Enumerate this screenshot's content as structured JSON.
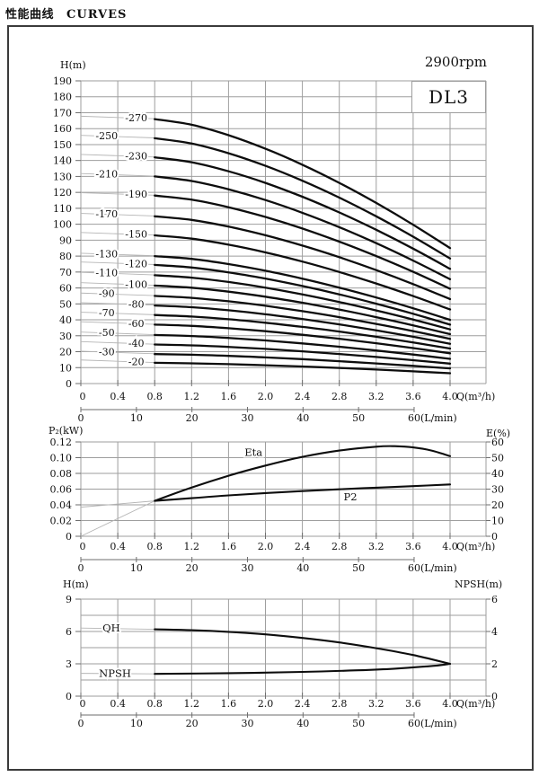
{
  "header": {
    "title_zh": "性能曲线",
    "title_en": "CURVES",
    "speed": "2900rpm",
    "model": "DL3"
  },
  "colors": {
    "grid": "#9e9e9e",
    "curve": "#0d0d0d",
    "leader": "#b5b5b5",
    "tick": "#6e6e6e",
    "frame": "#3b3b3b"
  },
  "chart_data": [
    {
      "id": "head-capacity-curves",
      "type": "line",
      "title": "Q-H curves per stage count",
      "y_axis": {
        "label": "H(m)",
        "min": 0,
        "max": 190,
        "tick_labels": [
          "190",
          "180",
          "170",
          "160",
          "150",
          "140",
          "130",
          "120",
          "110",
          "100",
          "90",
          "80",
          "70",
          "60",
          "50",
          "40",
          "30",
          "20",
          "10",
          "0"
        ]
      },
      "x_axis": {
        "label": "Q(m³/h)",
        "min": 0,
        "max": 4.0,
        "tick_labels": [
          "0",
          "0.4",
          "0.8",
          "1.2",
          "1.6",
          "2.0",
          "2.4",
          "2.8",
          "3.2",
          "3.6",
          "4.0"
        ]
      },
      "x_axis2": {
        "label": "(L/min)",
        "min": 0,
        "max": 60,
        "tick_labels": [
          "0",
          "10",
          "20",
          "30",
          "40",
          "50",
          "60"
        ]
      },
      "q_range": [
        0.8,
        4.0
      ],
      "curves": [
        {
          "label": "-270",
          "h_start": 166,
          "h_end": 85,
          "label_side": "right"
        },
        {
          "label": "-250",
          "h_start": 154,
          "h_end": 78.5,
          "label_side": "left"
        },
        {
          "label": "-230",
          "h_start": 142,
          "h_end": 72,
          "label_side": "right"
        },
        {
          "label": "-210",
          "h_start": 130,
          "h_end": 65.5,
          "label_side": "left"
        },
        {
          "label": "-190",
          "h_start": 118,
          "h_end": 59.5,
          "label_side": "right"
        },
        {
          "label": "-170",
          "h_start": 105,
          "h_end": 53,
          "label_side": "left"
        },
        {
          "label": "-150",
          "h_start": 93,
          "h_end": 46.5,
          "label_side": "right"
        },
        {
          "label": "-130",
          "h_start": 80,
          "h_end": 40,
          "label_side": "left"
        },
        {
          "label": "-120",
          "h_start": 74.5,
          "h_end": 37,
          "label_side": "right"
        },
        {
          "label": "-110",
          "h_start": 68,
          "h_end": 34,
          "label_side": "left"
        },
        {
          "label": "-100",
          "h_start": 61.5,
          "h_end": 31,
          "label_side": "right"
        },
        {
          "label": "-90",
          "h_start": 55,
          "h_end": 28,
          "label_side": "left"
        },
        {
          "label": "-80",
          "h_start": 49,
          "h_end": 25,
          "label_side": "right"
        },
        {
          "label": "-70",
          "h_start": 43,
          "h_end": 22,
          "label_side": "left"
        },
        {
          "label": "-60",
          "h_start": 37,
          "h_end": 19,
          "label_side": "right"
        },
        {
          "label": "-50",
          "h_start": 30.5,
          "h_end": 15.5,
          "label_side": "left"
        },
        {
          "label": "-40",
          "h_start": 24.5,
          "h_end": 12.5,
          "label_side": "right"
        },
        {
          "label": "-30",
          "h_start": 18.5,
          "h_end": 9.5,
          "label_side": "left"
        },
        {
          "label": "-20",
          "h_start": 13,
          "h_end": 6.5,
          "label_side": "right"
        }
      ]
    },
    {
      "id": "power-efficiency",
      "type": "line",
      "title": "P2 and efficiency vs flow",
      "y_axis": {
        "label": "P₂(kW)",
        "min": 0,
        "max": 0.12,
        "tick_labels": [
          "0.12",
          "0.10",
          "0.08",
          "0.06",
          "0.04",
          "0.02",
          "0"
        ]
      },
      "right_axis": {
        "label": "E(%)",
        "min": 0,
        "max": 60,
        "tick_labels": [
          "60",
          "50",
          "40",
          "30",
          "20",
          "10",
          "0"
        ]
      },
      "x_axis": {
        "label": "Q(m³/h)",
        "min": 0,
        "max": 4.0,
        "tick_labels": [
          "0",
          "0.4",
          "0.8",
          "1.2",
          "1.6",
          "2.0",
          "2.4",
          "2.8",
          "3.2",
          "3.6",
          "4.0"
        ]
      },
      "x_axis2": {
        "label": "(L/min)",
        "min": 0,
        "max": 60,
        "tick_labels": [
          "0",
          "10",
          "20",
          "30",
          "40",
          "50",
          "60"
        ]
      },
      "series": [
        {
          "name": "Eta",
          "axis": "right",
          "points": [
            [
              0.8,
              22.5
            ],
            [
              1.2,
              31
            ],
            [
              1.6,
              38.5
            ],
            [
              2.0,
              45
            ],
            [
              2.4,
              50.5
            ],
            [
              2.8,
              54.5
            ],
            [
              3.2,
              57
            ],
            [
              3.4,
              57.3
            ],
            [
              3.6,
              56.5
            ],
            [
              3.8,
              54.5
            ],
            [
              4.0,
              51
            ]
          ],
          "leader": [
            [
              0,
              0
            ],
            [
              0.8,
              22.5
            ]
          ],
          "label": {
            "text": "Eta",
            "q": 1.87,
            "v": 53.5
          }
        },
        {
          "name": "P2",
          "axis": "left",
          "points": [
            [
              0.8,
              0.045
            ],
            [
              1.2,
              0.0485
            ],
            [
              1.6,
              0.052
            ],
            [
              2.0,
              0.055
            ],
            [
              2.4,
              0.0575
            ],
            [
              2.8,
              0.0598
            ],
            [
              3.2,
              0.0618
            ],
            [
              3.6,
              0.0638
            ],
            [
              4.0,
              0.066
            ]
          ],
          "leader": [
            [
              0,
              0.037
            ],
            [
              0.8,
              0.045
            ]
          ],
          "label": {
            "text": "P2",
            "q": 2.92,
            "v": 0.0505
          }
        }
      ]
    },
    {
      "id": "qh-npsh",
      "type": "line",
      "title": "Single-stage QH and NPSH vs flow",
      "y_axis": {
        "label": "H(m)",
        "min": 0,
        "max": 9,
        "tick_labels": [
          "9",
          "6",
          "3",
          "0"
        ]
      },
      "right_axis": {
        "label": "NPSH(m)",
        "min": 0,
        "max": 6,
        "tick_labels": [
          "6",
          "4",
          "2",
          "0"
        ]
      },
      "x_axis": {
        "label": "Q(m³/h)",
        "min": 0,
        "max": 4.0,
        "tick_labels": [
          "0",
          "0.4",
          "0.8",
          "1.2",
          "1.6",
          "2.0",
          "2.4",
          "2.8",
          "3.2",
          "3.6",
          "4.0"
        ]
      },
      "x_axis2": {
        "label": "(L/min)",
        "min": 0,
        "max": 60,
        "tick_labels": [
          "0",
          "10",
          "20",
          "30",
          "40",
          "50",
          "60"
        ]
      },
      "series": [
        {
          "name": "QH",
          "axis": "left",
          "points": [
            [
              0.8,
              6.2
            ],
            [
              1.2,
              6.12
            ],
            [
              1.6,
              5.97
            ],
            [
              2.0,
              5.73
            ],
            [
              2.4,
              5.4
            ],
            [
              2.8,
              4.98
            ],
            [
              3.2,
              4.45
            ],
            [
              3.6,
              3.82
            ],
            [
              4.0,
              3.0
            ]
          ],
          "leader": [
            [
              0,
              6.32
            ],
            [
              0.8,
              6.2
            ]
          ],
          "label": {
            "text": "QH",
            "q": 0.33,
            "v": 6.33
          }
        },
        {
          "name": "NPSH",
          "axis": "right",
          "points": [
            [
              0.8,
              1.38
            ],
            [
              1.6,
              1.42
            ],
            [
              2.4,
              1.5
            ],
            [
              3.0,
              1.6
            ],
            [
              3.4,
              1.7
            ],
            [
              3.7,
              1.82
            ],
            [
              3.9,
              1.92
            ],
            [
              4.0,
              2.0
            ]
          ],
          "leader": [
            [
              0,
              1.41
            ],
            [
              0.8,
              1.38
            ]
          ],
          "label": {
            "text": "NPSH",
            "q": 0.37,
            "v": 1.43
          }
        }
      ]
    }
  ]
}
